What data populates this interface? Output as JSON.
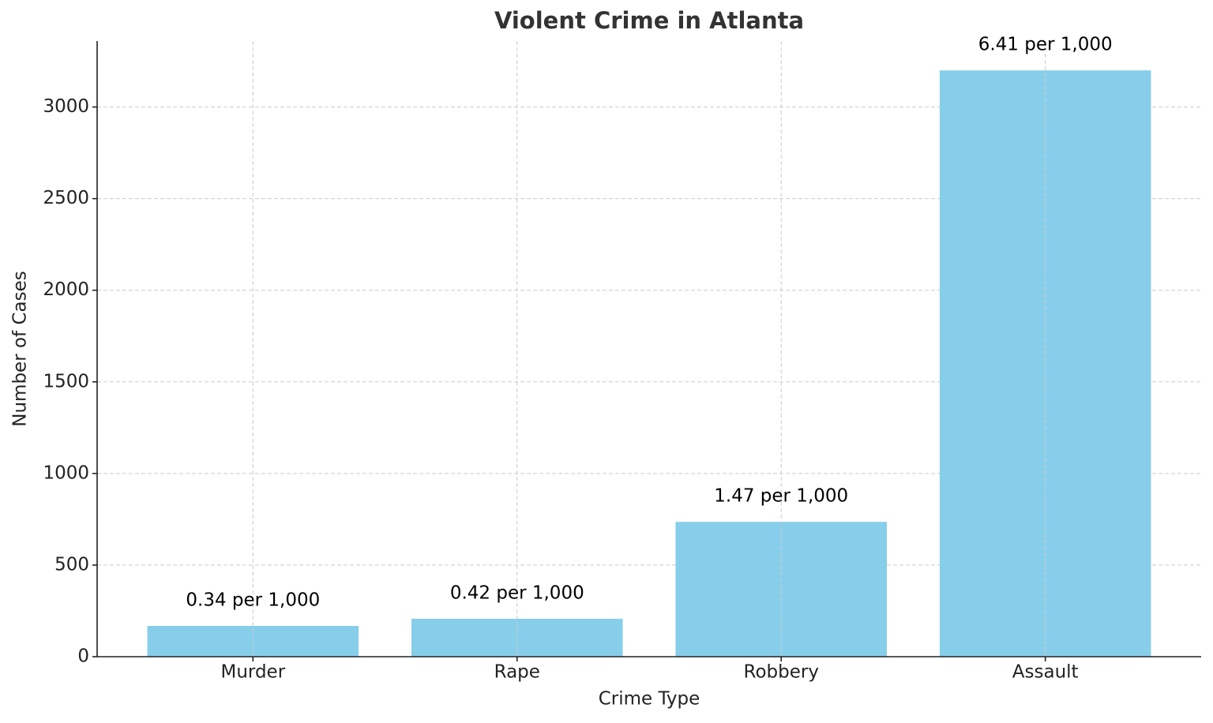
{
  "chart_data": {
    "type": "bar",
    "title": "Violent Crime in Atlanta",
    "x_label": "Crime Type",
    "y_label": "Number of Cases",
    "categories": [
      "Murder",
      "Rape",
      "Robbery",
      "Assault"
    ],
    "values": [
      168,
      207,
      736,
      3200
    ],
    "annotations": [
      "0.34 per 1,000",
      "0.42 per 1,000",
      "1.47 per 1,000",
      "6.41 per 1,000"
    ],
    "color": "#87ceeb",
    "ylim": [
      0,
      3360
    ],
    "yticks": [
      0,
      500,
      1000,
      1500,
      2000,
      2500,
      3000
    ],
    "grid": true
  }
}
